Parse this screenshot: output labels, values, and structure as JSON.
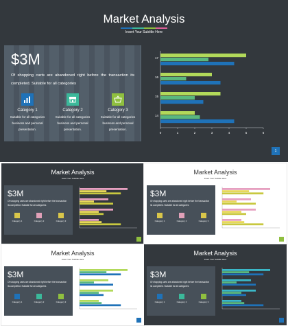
{
  "main": {
    "title": "Market Analysis",
    "subtitle": "Insert Your Subtitle Here",
    "amount": "$3M",
    "description": "Of shopping carts are abandoned right before the transaction its completed. Suitable for all categories",
    "categories": [
      {
        "name": "Category 1",
        "desc1": "Suitable for all categories",
        "desc2": "business and personal",
        "desc3": "presentation.",
        "icon": "chart-icon",
        "color": "#1f72b8"
      },
      {
        "name": "Category 2",
        "desc1": "Suitable for all categories",
        "desc2": "business and personal",
        "desc3": "presentation.",
        "icon": "store-icon",
        "color": "#3bb89a"
      },
      {
        "name": "Category 3",
        "desc1": "Suitable for all categories",
        "desc2": "business and personal",
        "desc3": "presentation.",
        "icon": "basket-icon",
        "color": "#8fbf3f"
      }
    ],
    "page_number": "1"
  },
  "chart_data": {
    "type": "bar",
    "orientation": "horizontal",
    "categories": [
      "2017",
      "2016",
      "2015",
      "2014"
    ],
    "series": [
      {
        "values": [
          5.0,
          3.0,
          3.5,
          2.0
        ],
        "color": "#b2d95a"
      },
      {
        "values": [
          2.8,
          1.5,
          2.0,
          2.3
        ],
        "color": "#5ab87f"
      },
      {
        "values": [
          4.3,
          3.5,
          2.5,
          4.3
        ],
        "color": "#1f72b8"
      }
    ],
    "xlim": [
      0,
      6
    ],
    "xticks": [
      "0",
      "1",
      "2",
      "3",
      "4",
      "5",
      "6"
    ],
    "grid": false
  },
  "thumbnails": [
    {
      "title": "Market Analysis",
      "subtitle": "Insert Your Subtitle Here",
      "amount": "$3M",
      "desc": "Of shopping carts are abandoned right before the transaction its completed. Suitable for all categories",
      "theme": "dark",
      "accent": "#8fbf3f",
      "cats": [
        {
          "name": "Category 1",
          "color": "#d9c64a"
        },
        {
          "name": "Category 2",
          "color": "#e0a0b8"
        },
        {
          "name": "Category 3",
          "color": "#d9c64a"
        }
      ],
      "palette": [
        "#e6a0c0",
        "#e8d85a",
        "#c8c840"
      ]
    },
    {
      "title": "Market Analysis",
      "subtitle": "Insert Your Subtitle Here",
      "amount": "$3M",
      "desc": "Of shopping carts are abandoned right before the transaction its completed. Suitable for all categories",
      "theme": "light",
      "accent": "#8fbf3f",
      "cats": [
        {
          "name": "Category 1",
          "color": "#d9c64a"
        },
        {
          "name": "Category 2",
          "color": "#e0a0b8"
        },
        {
          "name": "Category 3",
          "color": "#d9c64a"
        }
      ],
      "palette": [
        "#e6a0c0",
        "#e8d85a",
        "#c8c840"
      ]
    },
    {
      "title": "Market Analysis",
      "subtitle": "Insert Your Subtitle Here",
      "amount": "$3M",
      "desc": "Of shopping carts are abandoned right before the transaction its completed. Suitable for all categories",
      "theme": "light",
      "accent": "#1f72b8",
      "cats": [
        {
          "name": "Category 1",
          "color": "#1f72b8"
        },
        {
          "name": "Category 2",
          "color": "#3bb89a"
        },
        {
          "name": "Category 3",
          "color": "#8fbf3f"
        }
      ],
      "palette": [
        "#b2d95a",
        "#5ab87f",
        "#1f72b8"
      ]
    },
    {
      "title": "Market Analysis",
      "subtitle": "Insert Your Subtitle Here",
      "amount": "$3M",
      "desc": "Of shopping carts are abandoned right before the transaction its completed. Suitable for all categories",
      "theme": "dark",
      "accent": "#1f72b8",
      "cats": [
        {
          "name": "Category 1",
          "color": "#1f72b8"
        },
        {
          "name": "Category 2",
          "color": "#3bb89a"
        },
        {
          "name": "Category 3",
          "color": "#8fbf3f"
        }
      ],
      "palette": [
        "#3bb8c8",
        "#5ab87f",
        "#1f72b8"
      ]
    }
  ]
}
